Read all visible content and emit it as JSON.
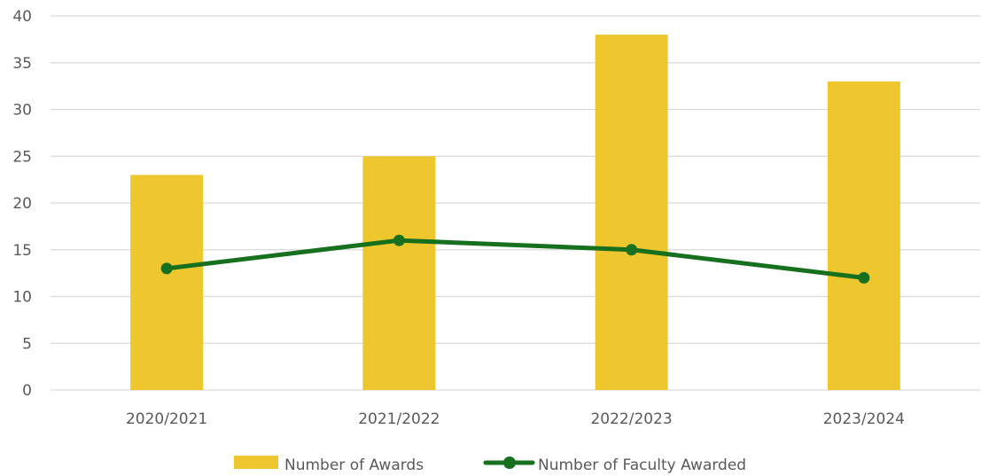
{
  "chart_data": {
    "type": "bar",
    "categories": [
      "2020/2021",
      "2021/2022",
      "2022/2023",
      "2023/2024"
    ],
    "series": [
      {
        "name": "Number of Awards",
        "type": "bar",
        "color": "#EEC72E",
        "values": [
          23,
          25,
          38,
          33
        ]
      },
      {
        "name": "Number of Faculty Awarded",
        "type": "line",
        "color": "#17701E",
        "values": [
          13,
          16,
          15,
          12
        ]
      }
    ],
    "title": "",
    "xlabel": "",
    "ylabel": "",
    "ylim": [
      0,
      40
    ],
    "yticks": [
      0,
      5,
      10,
      15,
      20,
      25,
      30,
      35,
      40
    ],
    "grid": true,
    "gridline_color": "#D9D9D9",
    "legend_position": "bottom"
  }
}
